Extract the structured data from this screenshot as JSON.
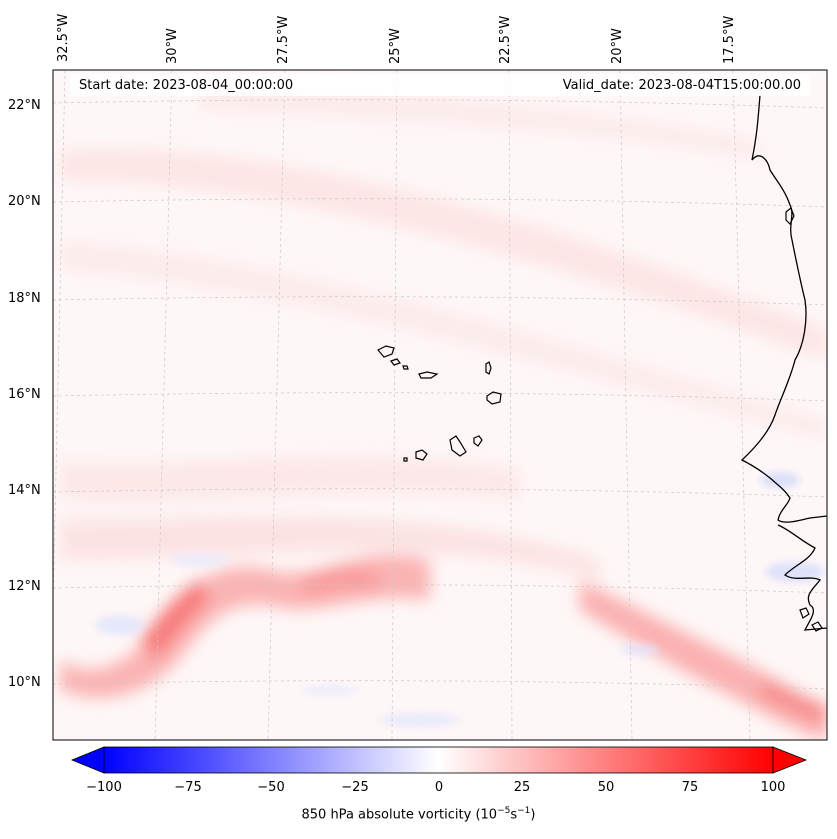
{
  "map": {
    "start_date": "Start date: 2023-08-04_00:00:00",
    "valid_date": "Valid_date: 2023-08-04T15:00:00.00",
    "lon_labels": [
      "32.5°W",
      "30°W",
      "27.5°W",
      "25°W",
      "22.5°W",
      "20°W",
      "17.5°W"
    ],
    "lat_labels": [
      "22°N",
      "20°N",
      "18°N",
      "16°N",
      "14°N",
      "12°N",
      "10°N"
    ],
    "variable": "850 hPa absolute vorticity",
    "units_prefix": "(10",
    "units_exp1": "−5",
    "units_mid": "s",
    "units_exp2": "−1",
    "units_suffix": ")"
  },
  "colorbar": {
    "ticks": [
      "−100",
      "−75",
      "−50",
      "−25",
      "0",
      "25",
      "50",
      "75",
      "100"
    ],
    "min": -100,
    "max": 100,
    "low_color": "#0000ff",
    "high_color": "#ff0000"
  },
  "colors": {
    "background": "#fdf6f6",
    "coast": "#000000",
    "grid": "#c8c8c8"
  }
}
